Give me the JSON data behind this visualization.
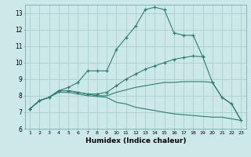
{
  "xlabel": "Humidex (Indice chaleur)",
  "background_color": "#cce8e8",
  "grid_color": "#aacfcf",
  "line_color": "#2e7d6e",
  "xlim": [
    0.5,
    23.5
  ],
  "ylim": [
    6,
    13.5
  ],
  "yticks": [
    6,
    7,
    8,
    9,
    10,
    11,
    12,
    13
  ],
  "xticks": [
    1,
    2,
    3,
    4,
    5,
    6,
    7,
    8,
    9,
    10,
    11,
    12,
    13,
    14,
    15,
    16,
    17,
    18,
    19,
    20,
    21,
    22,
    23
  ],
  "lines": [
    {
      "x": [
        1,
        2,
        3,
        4,
        5,
        6,
        7,
        8,
        9,
        10,
        11,
        12,
        13,
        14,
        15,
        16,
        17,
        18,
        19,
        20,
        21,
        22,
        23
      ],
      "y": [
        7.2,
        7.7,
        7.9,
        8.3,
        8.5,
        8.8,
        9.5,
        9.5,
        9.5,
        10.8,
        11.5,
        12.2,
        13.2,
        13.35,
        13.2,
        11.8,
        11.65,
        11.65,
        10.35,
        null,
        null,
        null,
        null
      ],
      "marker": true
    },
    {
      "x": [
        1,
        2,
        3,
        4,
        5,
        6,
        7,
        8,
        9,
        10,
        11,
        12,
        13,
        14,
        15,
        16,
        17,
        18,
        19,
        20,
        21,
        22,
        23
      ],
      "y": [
        7.2,
        7.7,
        7.9,
        8.3,
        8.3,
        8.2,
        8.1,
        8.1,
        8.2,
        8.6,
        9.0,
        9.3,
        9.6,
        9.8,
        10.0,
        10.2,
        10.3,
        10.4,
        10.35,
        8.8,
        7.9,
        7.5,
        6.5
      ],
      "marker": true
    },
    {
      "x": [
        1,
        2,
        3,
        4,
        5,
        6,
        7,
        8,
        9,
        10,
        11,
        12,
        13,
        14,
        15,
        16,
        17,
        18,
        19,
        20,
        21,
        22,
        23
      ],
      "y": [
        7.2,
        7.7,
        7.9,
        8.3,
        8.3,
        8.2,
        8.1,
        8.0,
        8.0,
        8.2,
        8.35,
        8.5,
        8.6,
        8.7,
        8.8,
        8.8,
        8.85,
        8.85,
        8.85,
        8.8,
        7.9,
        7.5,
        6.5
      ],
      "marker": false
    },
    {
      "x": [
        1,
        2,
        3,
        4,
        5,
        6,
        7,
        8,
        9,
        10,
        11,
        12,
        13,
        14,
        15,
        16,
        17,
        18,
        19,
        20,
        21,
        22,
        23
      ],
      "y": [
        7.2,
        7.7,
        7.9,
        8.2,
        8.2,
        8.1,
        8.0,
        7.95,
        7.9,
        7.6,
        7.5,
        7.3,
        7.2,
        7.1,
        7.0,
        6.9,
        6.85,
        6.8,
        6.75,
        6.7,
        6.7,
        6.6,
        6.5
      ],
      "marker": false
    }
  ]
}
